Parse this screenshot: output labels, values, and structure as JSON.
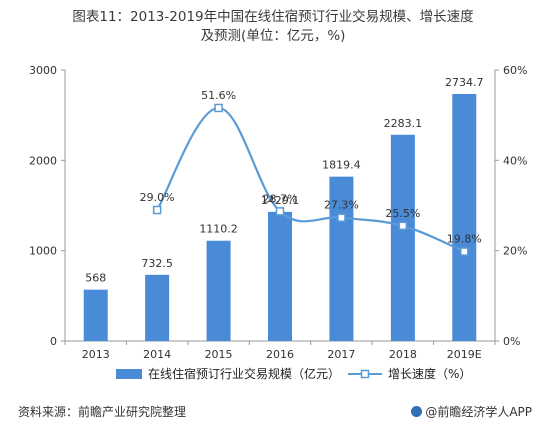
{
  "title": {
    "line1": "图表11：2013-2019年中国在线住宿预订行业交易规模、增长速度",
    "line2": "及预测(单位：亿元，%)"
  },
  "chart_data": {
    "type": "bar",
    "categories": [
      "2013",
      "2014",
      "2015",
      "2016",
      "2017",
      "2018",
      "2019E"
    ],
    "series": [
      {
        "name": "在线住宿预订行业交易规模（亿元）",
        "type": "bar",
        "axis": "left",
        "values": [
          568,
          732.5,
          1110.2,
          1429.1,
          1819.4,
          2283.1,
          2734.7
        ],
        "labels": [
          "568",
          "732.5",
          "1110.2",
          "1429.1",
          "1819.4",
          "2283.1",
          "2734.7"
        ]
      },
      {
        "name": "增长速度（%）",
        "type": "line",
        "axis": "right",
        "values": [
          null,
          29.0,
          51.6,
          28.7,
          27.3,
          25.5,
          19.8
        ],
        "labels": [
          "",
          "29.0%",
          "51.6%",
          "28.7%",
          "27.3%",
          "25.5%",
          "19.8%"
        ]
      }
    ],
    "y_left": {
      "range": [
        0,
        3000
      ],
      "ticks": [
        "0",
        "1000",
        "2000",
        "3000"
      ]
    },
    "y_right": {
      "range": [
        0,
        60
      ],
      "ticks": [
        "0%",
        "20%",
        "40%",
        "60%"
      ]
    },
    "grid": false,
    "legend": "bottom",
    "colors": {
      "bar": "#4a8bd8",
      "line": "#5b9bd5",
      "marker_fill": "#ffffff"
    }
  },
  "footer": {
    "source": "资料来源：前瞻产业研究院整理",
    "brand": "@前瞻经济学人APP"
  }
}
